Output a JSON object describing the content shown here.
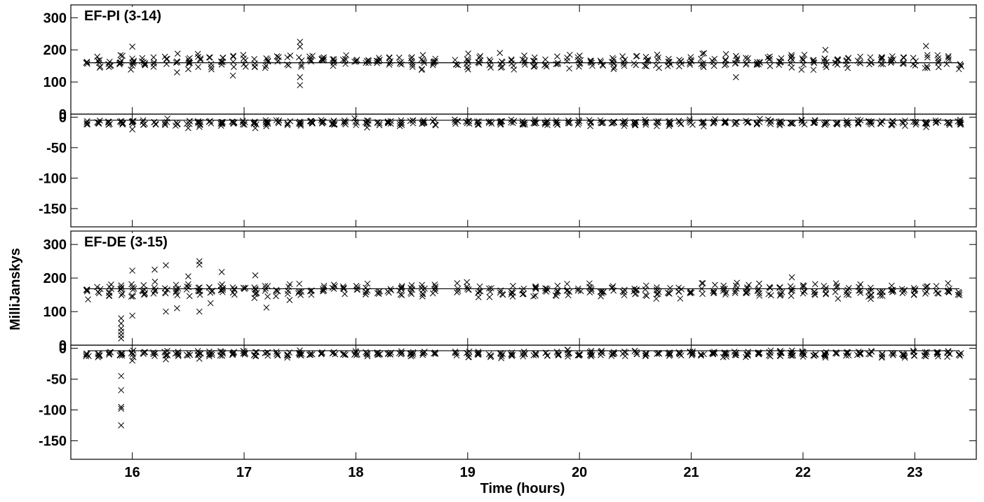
{
  "chart_data": {
    "type": "scatter",
    "xlabel": "Time (hours)",
    "ylabel": "MilliJanskys",
    "xlim": [
      15.45,
      23.55
    ],
    "x_ticks": [
      16,
      17,
      18,
      19,
      20,
      21,
      22,
      23
    ],
    "panels": [
      {
        "title": "EF-PI (3-14)",
        "upper": {
          "ylim": [
            0,
            340
          ],
          "y_ticks": [
            0,
            100,
            200,
            300
          ],
          "model_level": 160,
          "mean": 163,
          "spread": 16,
          "step": 0.1,
          "seed": 11,
          "outliers": [
            {
              "x": 17.5,
              "y": 225
            },
            {
              "x": 17.5,
              "y": 210
            },
            {
              "x": 17.5,
              "y": 115
            },
            {
              "x": 17.5,
              "y": 90
            },
            {
              "x": 16.4,
              "y": 130
            },
            {
              "x": 16.5,
              "y": 140
            },
            {
              "x": 21.4,
              "y": 115
            },
            {
              "x": 23.1,
              "y": 212
            },
            {
              "x": 22.2,
              "y": 200
            },
            {
              "x": 16.0,
              "y": 210
            },
            {
              "x": 16.9,
              "y": 120
            }
          ]
        },
        "lower": {
          "ylim": [
            -180,
            5
          ],
          "y_ticks": [
            -150,
            -100,
            -50,
            0
          ],
          "model_level": -5,
          "mean": -9,
          "spread": 3.5,
          "step": 0.1,
          "seed": 23,
          "outliers": [
            {
              "x": 16.0,
              "y": -20
            },
            {
              "x": 16.5,
              "y": -18
            },
            {
              "x": 17.1,
              "y": -18
            },
            {
              "x": 18.1,
              "y": -17
            },
            {
              "x": 16.6,
              "y": -16
            }
          ]
        }
      },
      {
        "title": "EF-DE (3-15)",
        "upper": {
          "ylim": [
            0,
            340
          ],
          "y_ticks": [
            0,
            100,
            200,
            300
          ],
          "model_level": 168,
          "mean": 163,
          "spread": 15,
          "step": 0.1,
          "seed": 37,
          "outliers": [
            {
              "x": 15.9,
              "y": 80
            },
            {
              "x": 15.9,
              "y": 65
            },
            {
              "x": 15.9,
              "y": 50
            },
            {
              "x": 15.9,
              "y": 40
            },
            {
              "x": 15.9,
              "y": 30
            },
            {
              "x": 15.9,
              "y": 20
            },
            {
              "x": 16.0,
              "y": 88
            },
            {
              "x": 16.3,
              "y": 100
            },
            {
              "x": 16.4,
              "y": 110
            },
            {
              "x": 16.6,
              "y": 100
            },
            {
              "x": 16.6,
              "y": 250
            },
            {
              "x": 16.6,
              "y": 240
            },
            {
              "x": 16.3,
              "y": 238
            },
            {
              "x": 16.8,
              "y": 218
            },
            {
              "x": 17.2,
              "y": 112
            },
            {
              "x": 16.7,
              "y": 125
            },
            {
              "x": 17.1,
              "y": 208
            },
            {
              "x": 21.9,
              "y": 202
            },
            {
              "x": 16.0,
              "y": 222
            },
            {
              "x": 16.5,
              "y": 205
            },
            {
              "x": 16.2,
              "y": 225
            }
          ]
        },
        "lower": {
          "ylim": [
            -180,
            5
          ],
          "y_ticks": [
            -150,
            -100,
            -50,
            0
          ],
          "model_level": -4,
          "mean": -9,
          "spread": 3.5,
          "step": 0.1,
          "seed": 53,
          "outliers": [
            {
              "x": 15.9,
              "y": -45
            },
            {
              "x": 15.9,
              "y": -68
            },
            {
              "x": 15.9,
              "y": -95
            },
            {
              "x": 15.9,
              "y": -98
            },
            {
              "x": 15.9,
              "y": -125
            },
            {
              "x": 15.9,
              "y": -10
            },
            {
              "x": 16.0,
              "y": -20
            },
            {
              "x": 16.3,
              "y": -18
            },
            {
              "x": 16.6,
              "y": -17
            },
            {
              "x": 19.3,
              "y": -16
            },
            {
              "x": 22.2,
              "y": -15
            }
          ]
        }
      }
    ]
  }
}
